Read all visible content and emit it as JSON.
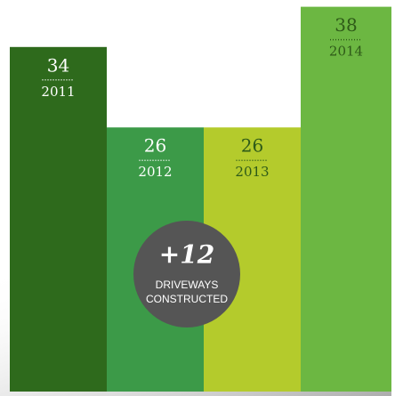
{
  "chart_data": {
    "type": "bar",
    "categories": [
      "2011",
      "2012",
      "2013",
      "2014"
    ],
    "values": [
      34,
      26,
      26,
      38
    ],
    "colors": [
      "#2e6a1c",
      "#3c9a48",
      "#b4cb2c",
      "#6cb742"
    ],
    "label_colors": [
      "#ffffff",
      "#ffffff",
      "#2e5a18",
      "#2e5a18"
    ],
    "annotation": {
      "headline": "+12",
      "lines": [
        "DRIVEWAYS",
        "CONSTRUCTED"
      ]
    }
  }
}
